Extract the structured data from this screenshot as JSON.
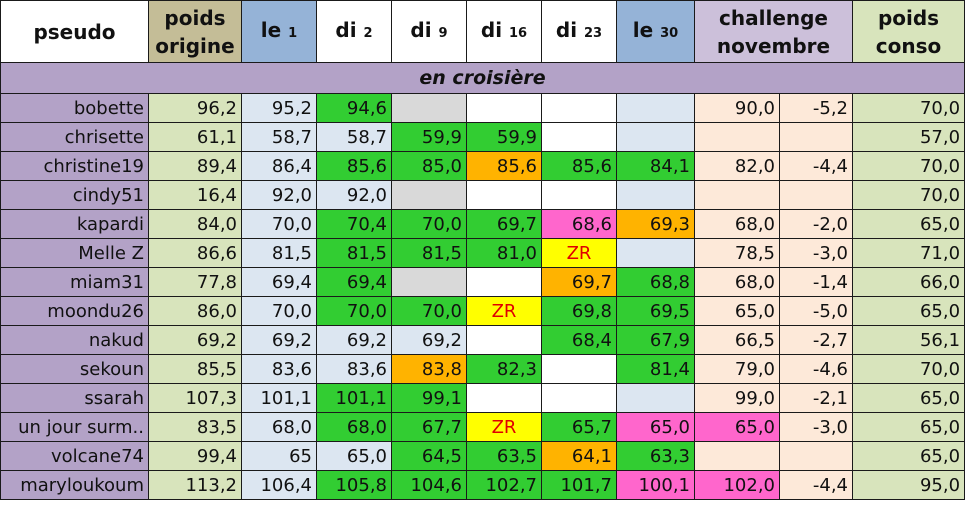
{
  "headers": {
    "pseudo": "pseudo",
    "poids_origine_1": "poids",
    "poids_origine_2": "origine",
    "le1_a": "le",
    "le1_b": "1",
    "di2_a": "di",
    "di2_b": "2",
    "di9_a": "di",
    "di9_b": "9",
    "di16_a": "di",
    "di16_b": "16",
    "di23_a": "di",
    "di23_b": "23",
    "le30_a": "le",
    "le30_b": "30",
    "challenge_1": "challenge",
    "challenge_2": "novembre",
    "conso_1": "poids",
    "conso_2": "conso"
  },
  "section_title": "en croisière",
  "rows": [
    {
      "pseudo": "bobette",
      "orig": "96,2",
      "le1": "95,2",
      "di2": "94,6",
      "di9": "",
      "di16": "",
      "di23": "",
      "le30": "",
      "chal": "90,0",
      "diff": "-5,2",
      "conso": "70,0"
    },
    {
      "pseudo": "chrisette",
      "orig": "61,1",
      "le1": "58,7",
      "di2": "58,7",
      "di9": "59,9",
      "di16": "59,9",
      "di23": "",
      "le30": "",
      "chal": "",
      "diff": "",
      "conso": "57,0"
    },
    {
      "pseudo": "christine19",
      "orig": "89,4",
      "le1": "86,4",
      "di2": "85,6",
      "di9": "85,0",
      "di16": "85,6",
      "di23": "85,6",
      "le30": "84,1",
      "chal": "82,0",
      "diff": "-4,4",
      "conso": "70,0"
    },
    {
      "pseudo": "cindy51",
      "orig": "16,4",
      "le1": "92,0",
      "di2": "92,0",
      "di9": "",
      "di16": "",
      "di23": "",
      "le30": "",
      "chal": "",
      "diff": "",
      "conso": "70,0"
    },
    {
      "pseudo": "kapardi",
      "orig": "84,0",
      "le1": "70,0",
      "di2": "70,4",
      "di9": "70,0",
      "di16": "69,7",
      "di23": "68,6",
      "le30": "69,3",
      "chal": "68,0",
      "diff": "-2,0",
      "conso": "65,0"
    },
    {
      "pseudo": "Melle Z",
      "orig": "86,6",
      "le1": "81,5",
      "di2": "81,5",
      "di9": "81,5",
      "di16": "81,0",
      "di23": "ZR",
      "le30": "",
      "chal": "78,5",
      "diff": "-3,0",
      "conso": "71,0"
    },
    {
      "pseudo": "miam31",
      "orig": "77,8",
      "le1": "69,4",
      "di2": "69,4",
      "di9": "",
      "di16": "",
      "di23": "69,7",
      "le30": "68,8",
      "chal": "68,0",
      "diff": "-1,4",
      "conso": "66,0"
    },
    {
      "pseudo": "moondu26",
      "orig": "86,0",
      "le1": "70,0",
      "di2": "70,0",
      "di9": "70,0",
      "di16": "ZR",
      "di23": "69,8",
      "le30": "69,5",
      "chal": "65,0",
      "diff": "-5,0",
      "conso": "65,0"
    },
    {
      "pseudo": "nakud",
      "orig": "69,2",
      "le1": "69,2",
      "di2": "69,2",
      "di9": "69,2",
      "di16": "",
      "di23": "68,4",
      "le30": "67,9",
      "chal": "66,5",
      "diff": "-2,7",
      "conso": "56,1"
    },
    {
      "pseudo": "sekoun",
      "orig": "85,5",
      "le1": "83,6",
      "di2": "83,6",
      "di9": "83,8",
      "di16": "82,3",
      "di23": "",
      "le30": "81,4",
      "chal": "79,0",
      "diff": "-4,6",
      "conso": "70,0"
    },
    {
      "pseudo": "ssarah",
      "orig": "107,3",
      "le1": "101,1",
      "di2": "101,1",
      "di9": "99,1",
      "di16": "",
      "di23": "",
      "le30": "",
      "chal": "99,0",
      "diff": "-2,1",
      "conso": "65,0"
    },
    {
      "pseudo": "un jour surm..",
      "orig": "83,5",
      "le1": "68,0",
      "di2": "68,0",
      "di9": "67,7",
      "di16": "ZR",
      "di23": "65,7",
      "le30": "65,0",
      "chal": "65,0",
      "diff": "-3,0",
      "conso": "65,0"
    },
    {
      "pseudo": "volcane74",
      "orig": "99,4",
      "le1": "65",
      "di2": "65,0",
      "di9": "64,5",
      "di16": "63,5",
      "di23": "64,1",
      "le30": "63,3",
      "chal": "",
      "diff": "",
      "conso": "65,0"
    },
    {
      "pseudo": "maryloukoum",
      "orig": "113,2",
      "le1": "106,4",
      "di2": "105,8",
      "di9": "104,6",
      "di16": "102,7",
      "di23": "101,7",
      "le30": "100,1",
      "chal": "102,0",
      "diff": "-4,4",
      "conso": "95,0"
    }
  ],
  "colors": {
    "pseudo_bg": "#b3a2c7",
    "origin_bg": "#d8e4bc",
    "blue_col_bg": "#dce6f1",
    "challenge_bg": "#fde9d9",
    "green": "#32cd32",
    "orange": "#ffb300",
    "pink": "#ff66cc",
    "grey": "#d9d9d9",
    "yellow": "#ffff00",
    "zr_text": "#e00000"
  }
}
